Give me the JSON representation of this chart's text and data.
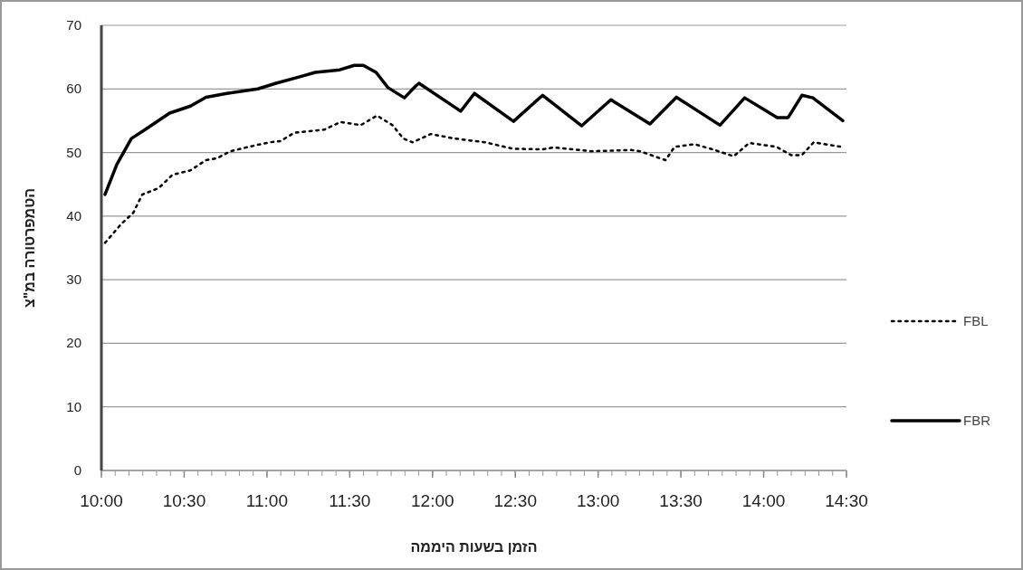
{
  "chart_data": {
    "type": "line",
    "xlabel": "הזמן בשעות היממה",
    "ylabel": "הטמפרטורה במ\"צ",
    "xlim": [
      10,
      14.5
    ],
    "ylim": [
      0,
      70
    ],
    "xticks": [
      {
        "value": 10,
        "label": "10:00"
      },
      {
        "value": 10.5,
        "label": "10:30"
      },
      {
        "value": 11,
        "label": "11:00"
      },
      {
        "value": 11.5,
        "label": "11:30"
      },
      {
        "value": 12,
        "label": "12:00"
      },
      {
        "value": 12.5,
        "label": "12:30"
      },
      {
        "value": 13,
        "label": "13:00"
      },
      {
        "value": 13.5,
        "label": "13:30"
      },
      {
        "value": 14,
        "label": "14:00"
      },
      {
        "value": 14.5,
        "label": "14:30"
      }
    ],
    "yticks": [
      0,
      10,
      20,
      30,
      40,
      50,
      60,
      70
    ],
    "grid": "y",
    "legend": "right",
    "marker": "none",
    "series": [
      {
        "name": "FBL",
        "color": "#000000",
        "line_style": "dotted",
        "x": [
          10.022,
          10.121,
          10.192,
          10.247,
          10.346,
          10.429,
          10.538,
          10.632,
          10.698,
          10.78,
          10.89,
          11.016,
          11.082,
          11.165,
          11.346,
          11.445,
          11.566,
          11.665,
          11.758,
          11.824,
          11.879,
          11.989,
          12.132,
          12.319,
          12.484,
          12.665,
          12.731,
          12.956,
          13.198,
          13.253,
          13.407,
          13.462,
          13.582,
          13.692,
          13.819,
          13.912,
          14.077,
          14.165,
          14.231,
          14.302,
          14.467
        ],
        "values": [
          35.8,
          38.8,
          40.5,
          43.4,
          44.4,
          46.5,
          47.2,
          48.8,
          49.1,
          50.2,
          50.9,
          51.6,
          51.8,
          53.1,
          53.6,
          54.8,
          54.3,
          55.8,
          54.3,
          52.2,
          51.6,
          52.9,
          52.2,
          51.6,
          50.6,
          50.5,
          50.8,
          50.2,
          50.4,
          50.2,
          48.8,
          50.9,
          51.3,
          50.5,
          49.4,
          51.5,
          50.9,
          49.6,
          49.6,
          51.6,
          50.9
        ]
      },
      {
        "name": "FBR",
        "color": "#000000",
        "line_style": "solid",
        "x": [
          10.022,
          10.093,
          10.181,
          10.264,
          10.412,
          10.538,
          10.632,
          10.758,
          10.945,
          11.055,
          11.198,
          11.291,
          11.44,
          11.527,
          11.582,
          11.659,
          11.731,
          11.83,
          11.896,
          11.918,
          12.17,
          12.253,
          12.489,
          12.665,
          12.901,
          13.077,
          13.313,
          13.473,
          13.736,
          13.885,
          14.082,
          14.148,
          14.231,
          14.297,
          14.478
        ],
        "values": [
          43.4,
          48.1,
          52.2,
          53.6,
          56.2,
          57.3,
          58.7,
          59.3,
          60.0,
          60.9,
          61.9,
          62.6,
          63.0,
          63.7,
          63.7,
          62.6,
          60.2,
          58.6,
          60.4,
          60.9,
          56.5,
          59.3,
          54.9,
          59.0,
          54.2,
          58.3,
          54.5,
          58.7,
          54.3,
          58.6,
          55.5,
          55.5,
          59.0,
          58.6,
          55.0
        ]
      }
    ]
  }
}
